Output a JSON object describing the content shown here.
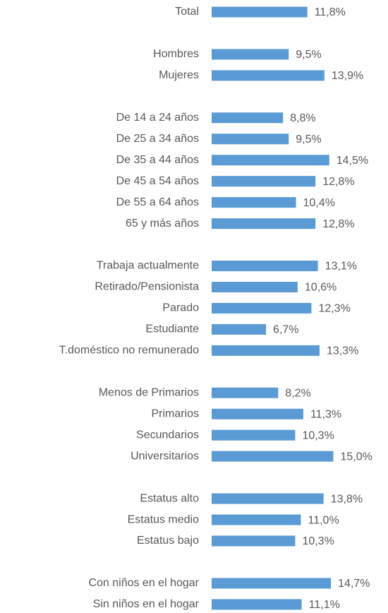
{
  "chart_data": {
    "type": "bar",
    "orientation": "horizontal",
    "color": "#5b9bd5",
    "categories": [
      "Total",
      null,
      "Hombres",
      "Mujeres",
      null,
      "De 14 a 24 años",
      "De 25 a 34 años",
      "De 35 a 44 años",
      "De 45 a 54 años",
      "De 55 a 64 años",
      "65 y más años",
      null,
      "Trabaja actualmente",
      "Retirado/Pensionista",
      "Parado",
      "Estudiante",
      "T.doméstico no remunerado",
      null,
      "Menos de Primarios",
      "Primarios",
      "Secundarios",
      "Universitarios",
      null,
      "Estatus alto",
      "Estatus medio",
      "Estatus bajo",
      null,
      "Con niños en el hogar",
      "Sin niños en el hogar"
    ],
    "values": [
      11.8,
      null,
      9.5,
      13.9,
      null,
      8.8,
      9.5,
      14.5,
      12.8,
      10.4,
      12.8,
      null,
      13.1,
      10.6,
      12.3,
      6.7,
      13.3,
      null,
      8.2,
      11.3,
      10.3,
      15.0,
      null,
      13.8,
      11.0,
      10.3,
      null,
      14.7,
      11.1
    ],
    "value_labels": [
      "11,8%",
      null,
      "9,5%",
      "13,9%",
      null,
      "8,8%",
      "9,5%",
      "14,5%",
      "12,8%",
      "10,4%",
      "12,8%",
      null,
      "13,1%",
      "10,6%",
      "12,3%",
      "6,7%",
      "13,3%",
      null,
      "8,2%",
      "11,3%",
      "10,3%",
      "15,0%",
      null,
      "13,8%",
      "11,0%",
      "10,3%",
      null,
      "14,7%",
      "11,1%"
    ]
  }
}
